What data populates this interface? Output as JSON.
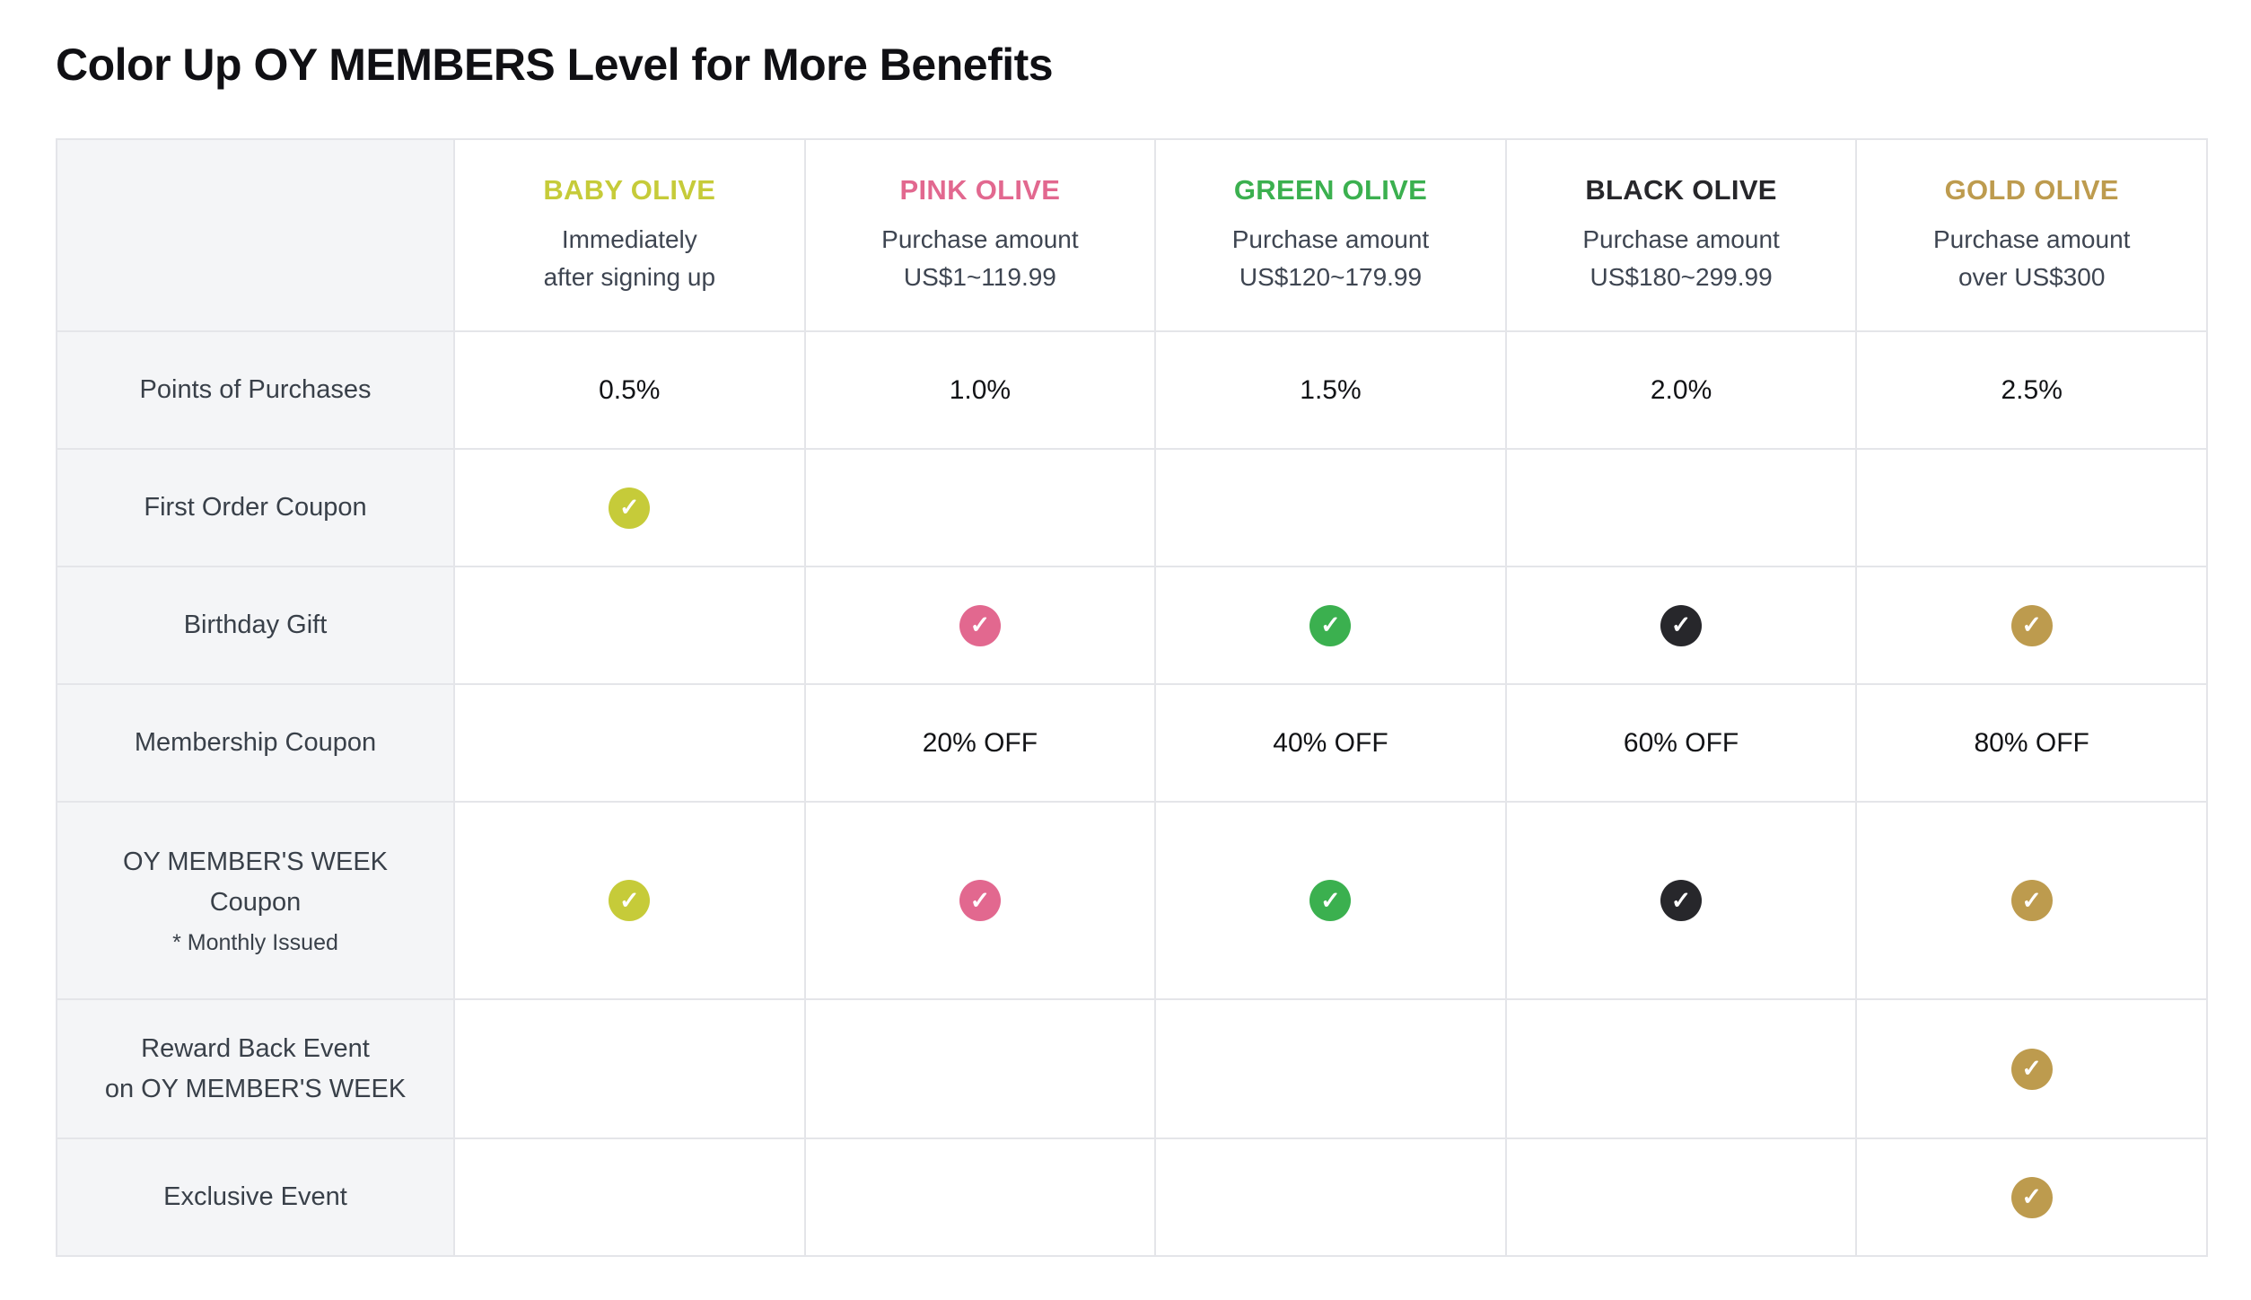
{
  "page_title": "Color Up OY MEMBERS Level for More Benefits",
  "icons": {
    "check": "✓"
  },
  "table": {
    "tiers": [
      {
        "id": "baby",
        "name": "BABY OLIVE",
        "color": "#c6cb39",
        "desc_lines": [
          "Immediately",
          "after signing up"
        ]
      },
      {
        "id": "pink",
        "name": "PINK OLIVE",
        "color": "#e2688f",
        "desc_lines": [
          "Purchase amount",
          "US$1~119.99"
        ]
      },
      {
        "id": "green",
        "name": "GREEN OLIVE",
        "color": "#3bb04f",
        "desc_lines": [
          "Purchase amount",
          "US$120~179.99"
        ]
      },
      {
        "id": "black",
        "name": "BLACK OLIVE",
        "color": "#27272b",
        "desc_lines": [
          "Purchase amount",
          "US$180~299.99"
        ]
      },
      {
        "id": "gold",
        "name": "GOLD OLIVE",
        "color": "#bd9b4e",
        "desc_lines": [
          "Purchase amount",
          "over US$300"
        ]
      }
    ],
    "rows": [
      {
        "label_lines": [
          "Points of Purchases"
        ],
        "cells": [
          {
            "type": "text",
            "value": "0.5%"
          },
          {
            "type": "text",
            "value": "1.0%"
          },
          {
            "type": "text",
            "value": "1.5%"
          },
          {
            "type": "text",
            "value": "2.0%"
          },
          {
            "type": "text",
            "value": "2.5%"
          }
        ]
      },
      {
        "label_lines": [
          "First Order Coupon"
        ],
        "cells": [
          {
            "type": "check"
          },
          {
            "type": "empty"
          },
          {
            "type": "empty"
          },
          {
            "type": "empty"
          },
          {
            "type": "empty"
          }
        ]
      },
      {
        "label_lines": [
          "Birthday Gift"
        ],
        "cells": [
          {
            "type": "empty"
          },
          {
            "type": "check"
          },
          {
            "type": "check"
          },
          {
            "type": "check"
          },
          {
            "type": "check"
          }
        ]
      },
      {
        "label_lines": [
          "Membership Coupon"
        ],
        "cells": [
          {
            "type": "empty"
          },
          {
            "type": "text",
            "value": "20% OFF"
          },
          {
            "type": "text",
            "value": "40% OFF"
          },
          {
            "type": "text",
            "value": "60% OFF"
          },
          {
            "type": "text",
            "value": "80% OFF"
          }
        ]
      },
      {
        "label_lines": [
          "OY MEMBER'S WEEK",
          "Coupon"
        ],
        "note": "* Monthly Issued",
        "cells": [
          {
            "type": "check"
          },
          {
            "type": "check"
          },
          {
            "type": "check"
          },
          {
            "type": "check"
          },
          {
            "type": "check"
          }
        ]
      },
      {
        "label_lines": [
          "Reward Back Event",
          "on OY MEMBER'S WEEK"
        ],
        "cells": [
          {
            "type": "empty"
          },
          {
            "type": "empty"
          },
          {
            "type": "empty"
          },
          {
            "type": "empty"
          },
          {
            "type": "check"
          }
        ]
      },
      {
        "label_lines": [
          "Exclusive Event"
        ],
        "cells": [
          {
            "type": "empty"
          },
          {
            "type": "empty"
          },
          {
            "type": "empty"
          },
          {
            "type": "empty"
          },
          {
            "type": "check"
          }
        ]
      }
    ]
  }
}
